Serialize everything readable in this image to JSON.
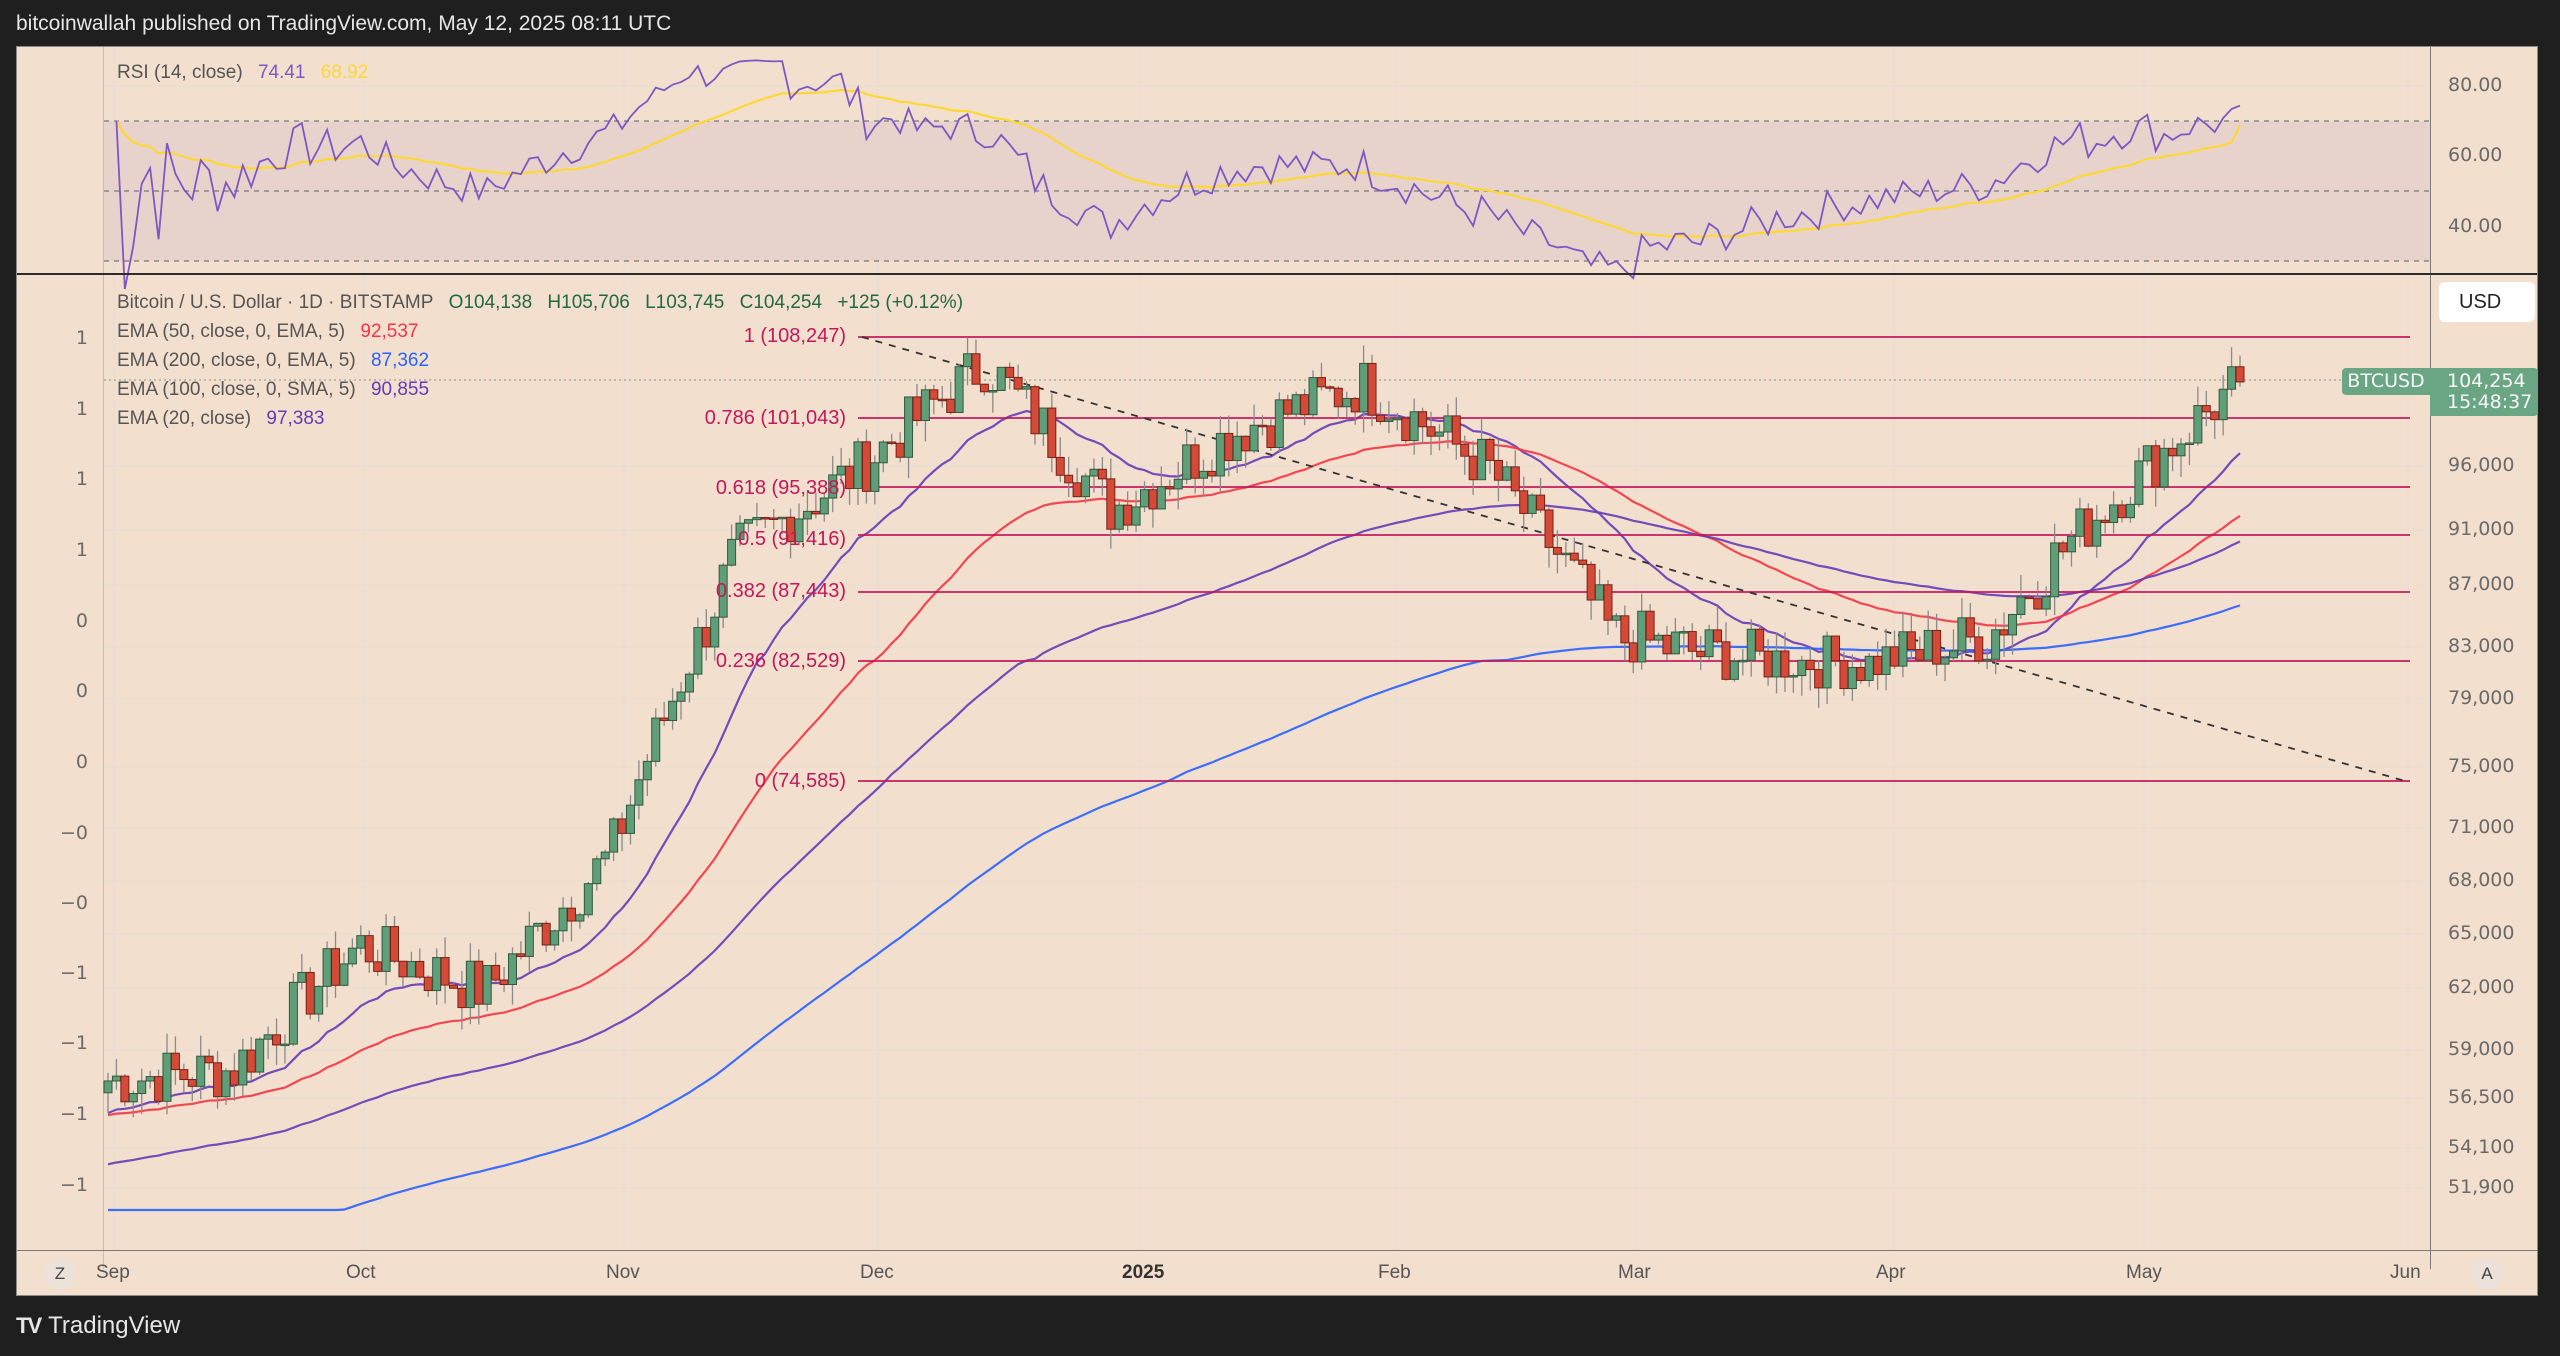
{
  "header": {
    "published": "bitcoinwallah published on TradingView.com, May 12, 2025 08:11 UTC"
  },
  "footer": {
    "logo_glyph": "TV",
    "brand": "TradingView"
  },
  "rsi": {
    "label": "RSI (14, close)",
    "value": "74.41",
    "ma_value": "68.92",
    "axis": [
      "80.00",
      "60.00",
      "40.00"
    ],
    "colors": {
      "rsi": "#7e57c2",
      "ma": "#fdd835",
      "band": "#e5d1cc"
    }
  },
  "main": {
    "symbol_line": "Bitcoin / U.S. Dollar · 1D · BITSTAMP",
    "ohlc": {
      "open": "O104,138",
      "high": "H105,706",
      "low": "L103,745",
      "close": "C104,254",
      "change": "+125 (+0.12%)"
    },
    "indicators": [
      {
        "label": "EMA (50, close, 0, EMA, 5)",
        "value": "92,537",
        "color": "#f23645"
      },
      {
        "label": "EMA (200, close, 0, EMA, 5)",
        "value": "87,362",
        "color": "#2962ff"
      },
      {
        "label": "EMA (100, close, 0, SMA, 5)",
        "value": "90,855",
        "color": "#673ab7"
      },
      {
        "label": "EMA (20, close)",
        "value": "97,383",
        "color": "#673ab7"
      }
    ],
    "currency_button": "USD",
    "price_tag": {
      "symbol": "BTCUSD",
      "price": "104,254",
      "countdown": "15:48:37"
    },
    "right_axis": [
      "96,000",
      "91,000",
      "87,000",
      "83,000",
      "79,000",
      "75,000",
      "71,000",
      "68,000",
      "65,000",
      "62,000",
      "59,000",
      "56,500",
      "54,100",
      "51,900"
    ],
    "left_axis": [
      "1",
      "1",
      "1",
      "1",
      "0",
      "0",
      "0",
      "−0",
      "−0",
      "−1",
      "−1",
      "−1",
      "−1"
    ],
    "time_axis": [
      "Sep",
      "Oct",
      "Nov",
      "Dec",
      "2025",
      "Feb",
      "Mar",
      "Apr",
      "May",
      "Jun"
    ],
    "zoom_button": "Z",
    "auto_button": "A"
  },
  "chart_data": {
    "type": "candlestick",
    "title": "Bitcoin / U.S. Dollar · 1D · BITSTAMP",
    "x_range": [
      "2024-09-01",
      "2025-06-01"
    ],
    "ylim": [
      51900,
      108247
    ],
    "last_ohlc": {
      "open": 104138,
      "high": 105706,
      "low": 103745,
      "close": 104254,
      "change": 125,
      "change_pct": 0.12
    },
    "fibonacci_levels": [
      {
        "ratio": "1",
        "price": 108247,
        "label": "1 (108,247)"
      },
      {
        "ratio": "0.786",
        "price": 101043,
        "label": "0.786 (101,043)"
      },
      {
        "ratio": "0.618",
        "price": 95388,
        "label": "0.618 (95,388)"
      },
      {
        "ratio": "0.5",
        "price": 91416,
        "label": "0.5 (91,416)"
      },
      {
        "ratio": "0.382",
        "price": 87443,
        "label": "0.382 (87,443)"
      },
      {
        "ratio": "0.236",
        "price": 82529,
        "label": "0.236 (82,529)"
      },
      {
        "ratio": "0",
        "price": 74585,
        "label": "0 (74,585)"
      }
    ],
    "moving_averages": [
      {
        "name": "EMA 50",
        "last": 92537,
        "color": "#f23645"
      },
      {
        "name": "EMA 200",
        "last": 87362,
        "color": "#2962ff"
      },
      {
        "name": "EMA 100 (SMA smoothing)",
        "last": 90855,
        "color": "#673ab7"
      },
      {
        "name": "EMA 20",
        "last": 97383,
        "color": "#673ab7"
      }
    ],
    "trendline": {
      "style": "dashed",
      "from": {
        "date": "2024-12-17",
        "price": 108247
      },
      "to": {
        "date": "2025-06-01",
        "price": 74585
      }
    },
    "closes_approx": [
      {
        "month": "Sep-start",
        "close": 58000
      },
      {
        "month": "Sep-mid",
        "close": 58500
      },
      {
        "month": "Sep-end",
        "close": 65000
      },
      {
        "month": "Oct-mid",
        "close": 62500
      },
      {
        "month": "Oct-end",
        "close": 70000
      },
      {
        "month": "Nov-mid",
        "close": 90000
      },
      {
        "month": "Nov-end",
        "close": 97000
      },
      {
        "month": "Dec-mid",
        "close": 106000
      },
      {
        "month": "Dec-end",
        "close": 93500
      },
      {
        "month": "Jan-mid",
        "close": 100000
      },
      {
        "month": "Jan-end",
        "close": 104000
      },
      {
        "month": "Feb-mid",
        "close": 97000
      },
      {
        "month": "Feb-end",
        "close": 84500
      },
      {
        "month": "Mar-mid",
        "close": 83000
      },
      {
        "month": "Mar-end",
        "close": 82500
      },
      {
        "month": "Apr-mid",
        "close": 84500
      },
      {
        "month": "Apr-end",
        "close": 94500
      },
      {
        "month": "May-12",
        "close": 104254
      }
    ],
    "rsi": {
      "period": 14,
      "last": 74.41,
      "ma_last": 68.92,
      "ylim": [
        20,
        90
      ],
      "bands": [
        70,
        50,
        30
      ]
    },
    "grid": true
  }
}
